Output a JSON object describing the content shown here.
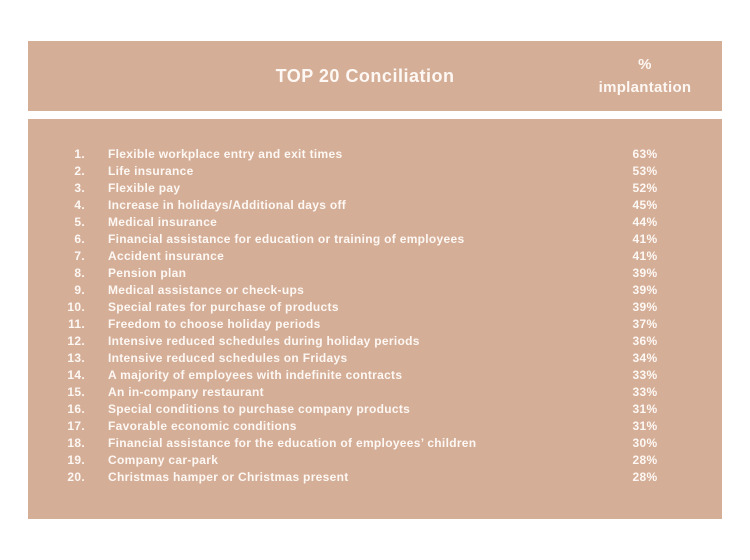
{
  "colors": {
    "page_background": "#ffffff",
    "panel_background": "#d5ae97",
    "text": "#fdf8f4"
  },
  "header": {
    "title": "TOP 20 Conciliation",
    "value_column_line1": "%",
    "value_column_line2": "implantation"
  },
  "table": {
    "rows": [
      {
        "rank": "1.",
        "label": "Flexible workplace entry and exit times",
        "value": "63%"
      },
      {
        "rank": "2.",
        "label": "Life insurance",
        "value": "53%"
      },
      {
        "rank": "3.",
        "label": "Flexible pay",
        "value": "52%"
      },
      {
        "rank": "4.",
        "label": "Increase in holidays/Additional days off",
        "value": "45%"
      },
      {
        "rank": "5.",
        "label": "Medical insurance",
        "value": "44%"
      },
      {
        "rank": "6.",
        "label": "Financial assistance for education or training of employees",
        "value": "41%"
      },
      {
        "rank": "7.",
        "label": "Accident insurance",
        "value": "41%"
      },
      {
        "rank": "8.",
        "label": "Pension plan",
        "value": "39%"
      },
      {
        "rank": "9.",
        "label": "Medical assistance or check-ups",
        "value": "39%"
      },
      {
        "rank": "10.",
        "label": "Special rates for purchase of products",
        "value": "39%"
      },
      {
        "rank": "11.",
        "label": "Freedom to choose holiday periods",
        "value": "37%"
      },
      {
        "rank": "12.",
        "label": "Intensive reduced schedules during holiday periods",
        "value": "36%"
      },
      {
        "rank": "13.",
        "label": "Intensive reduced schedules on Fridays",
        "value": "34%"
      },
      {
        "rank": "14.",
        "label": "A majority of employees with indefinite contracts",
        "value": "33%"
      },
      {
        "rank": "15.",
        "label": "An in-company restaurant",
        "value": "33%"
      },
      {
        "rank": "16.",
        "label": "Special conditions to purchase company products",
        "value": "31%"
      },
      {
        "rank": "17.",
        "label": "Favorable economic conditions",
        "value": "31%"
      },
      {
        "rank": "18.",
        "label": "Financial assistance for the education of employees’ children",
        "value": "30%"
      },
      {
        "rank": "19.",
        "label": "Company car-park",
        "value": "28%"
      },
      {
        "rank": "20.",
        "label": "Christmas hamper or Christmas present",
        "value": "28%"
      }
    ]
  },
  "chart_data": {
    "type": "table",
    "title": "TOP 20 Conciliation",
    "columns": [
      "rank",
      "benefit",
      "% implantation"
    ],
    "categories": [
      "Flexible workplace entry and exit times",
      "Life insurance",
      "Flexible pay",
      "Increase in holidays/Additional days off",
      "Medical insurance",
      "Financial assistance for education or training of employees",
      "Accident insurance",
      "Pension plan",
      "Medical assistance or check-ups",
      "Special rates for purchase of products",
      "Freedom to choose holiday periods",
      "Intensive reduced schedules during holiday periods",
      "Intensive reduced schedules on Fridays",
      "A majority of employees with indefinite contracts",
      "An in-company restaurant",
      "Special conditions to purchase company products",
      "Favorable economic conditions",
      "Financial assistance for the education of employees’ children",
      "Company car-park",
      "Christmas hamper or Christmas present"
    ],
    "values": [
      63,
      53,
      52,
      45,
      44,
      41,
      41,
      39,
      39,
      39,
      37,
      36,
      34,
      33,
      33,
      31,
      31,
      30,
      28,
      28
    ],
    "value_unit": "%"
  }
}
